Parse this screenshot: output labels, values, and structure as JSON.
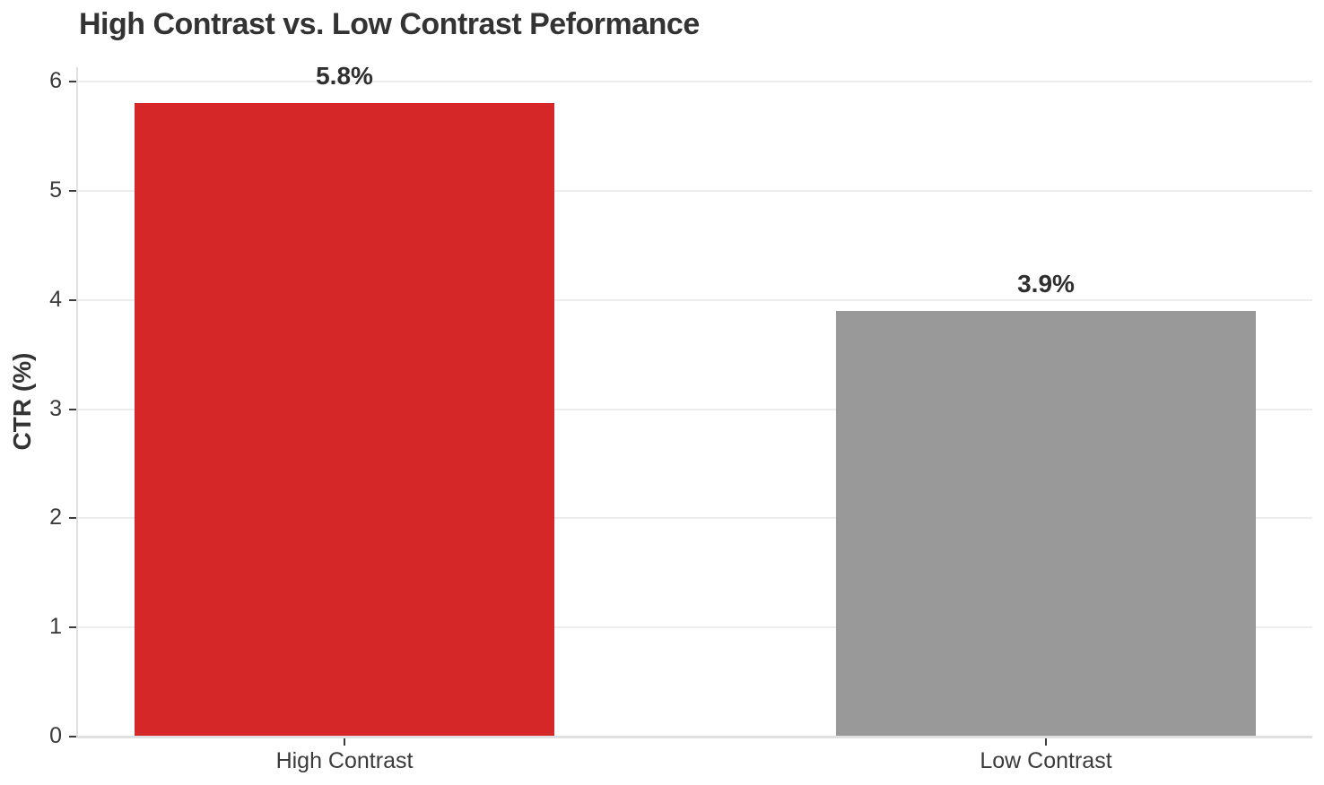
{
  "chart_data": {
    "type": "bar",
    "title": "High Contrast vs. Low Contrast Peformance",
    "categories": [
      "High Contrast",
      "Low Contrast"
    ],
    "values": [
      5.8,
      3.9
    ],
    "value_labels": [
      "5.8%",
      "3.9%"
    ],
    "bar_colors": [
      "#d62728",
      "#999999"
    ],
    "xlabel": "",
    "ylabel": "CTR (%)",
    "ylim": [
      0,
      6
    ],
    "yticks": [
      "0",
      "1",
      "2",
      "3",
      "4",
      "5",
      "6"
    ],
    "grid": "horizontal",
    "legend": "none",
    "background": "#ffffff"
  },
  "colors": {
    "title_text": "#333333",
    "tick_text": "#3a3a3a",
    "grid_line": "#ededed",
    "axis_line": "#e0e0e0",
    "tick_mark": "#3c3c3c",
    "value_label_text": "#2f2f2f"
  }
}
